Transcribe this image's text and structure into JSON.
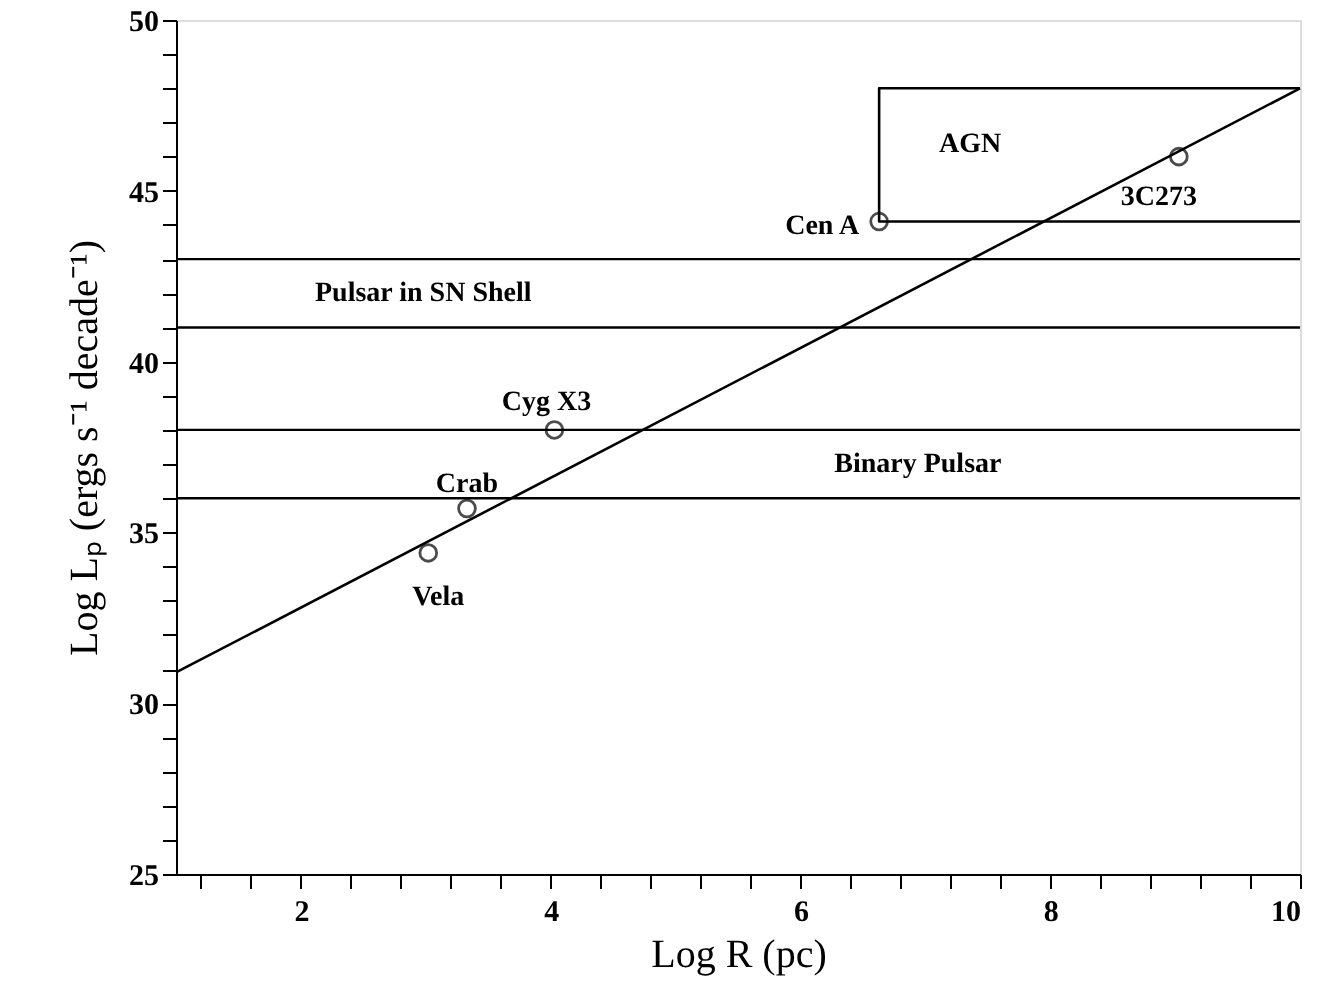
{
  "chart_data": {
    "type": "scatter",
    "xlabel": "Log R (pc)",
    "ylabel": "Log Lₚ (ergs s⁻¹ decade⁻¹)",
    "xlim": [
      1,
      10
    ],
    "ylim": [
      25,
      50
    ],
    "xticks": [
      {
        "value": 1.2,
        "label": null
      },
      {
        "value": 1.6,
        "label": null
      },
      2,
      {
        "value": 2.4,
        "label": null
      },
      {
        "value": 2.8,
        "label": null
      },
      {
        "value": 3.2,
        "label": null
      },
      {
        "value": 3.6,
        "label": null
      },
      4,
      {
        "value": 4.4,
        "label": null
      },
      {
        "value": 4.8,
        "label": null
      },
      {
        "value": 5.2,
        "label": null
      },
      {
        "value": 5.6,
        "label": null
      },
      6,
      {
        "value": 6.4,
        "label": null
      },
      {
        "value": 6.8,
        "label": null
      },
      {
        "value": 7.2,
        "label": null
      },
      {
        "value": 7.6,
        "label": null
      },
      8,
      {
        "value": 8.4,
        "label": null
      },
      {
        "value": 8.8,
        "label": null
      },
      {
        "value": 9.2,
        "label": null
      },
      {
        "value": 9.6,
        "label": null
      },
      10
    ],
    "yticks": [
      25,
      {
        "value": 26,
        "label": null
      },
      {
        "value": 27,
        "label": null
      },
      {
        "value": 28,
        "label": null
      },
      {
        "value": 29,
        "label": null
      },
      30,
      {
        "value": 31,
        "label": null
      },
      {
        "value": 32,
        "label": null
      },
      {
        "value": 33,
        "label": null
      },
      {
        "value": 34,
        "label": null
      },
      35,
      {
        "value": 36,
        "label": null
      },
      {
        "value": 37,
        "label": null
      },
      {
        "value": 38,
        "label": null
      },
      {
        "value": 39,
        "label": null
      },
      40,
      {
        "value": 41,
        "label": null
      },
      {
        "value": 42,
        "label": null
      },
      {
        "value": 43,
        "label": null
      },
      {
        "value": 44,
        "label": null
      },
      45,
      {
        "value": 46,
        "label": null
      },
      {
        "value": 47,
        "label": null
      },
      {
        "value": 48,
        "label": null
      },
      {
        "value": 49,
        "label": null
      },
      50
    ],
    "series": [
      {
        "color": "#000000",
        "marker": "circle",
        "x": [
          3.02,
          3.33,
          4.03,
          6.63,
          9.03
        ],
        "values": [
          34.4,
          35.7,
          38.0,
          44.1,
          46.0
        ]
      },
      {
        "type": "line",
        "color": "#000000",
        "x": [
          1,
          10
        ],
        "values": [
          30.9,
          48.0
        ]
      },
      {
        "type": "line",
        "name": "AGN",
        "color": "#000000",
        "x": [
          10,
          6.63,
          6.63,
          10
        ],
        "values": [
          48.0,
          48.0,
          44.1,
          44.1
        ]
      }
    ],
    "ref_lines": [
      {
        "axis": "y",
        "value": 43,
        "color": "#000000"
      },
      {
        "axis": "y",
        "value": 41,
        "label": "Pulsar in SN Shell",
        "color": "#000000"
      },
      {
        "axis": "y",
        "value": 38,
        "color": "#000000"
      },
      {
        "axis": "y",
        "value": 36,
        "label": "Binary Pulsar",
        "color": "#000000"
      }
    ],
    "annotations": [
      {
        "text": "Vela",
        "x": 3.02,
        "y": 34.4
      },
      {
        "text": "Crab",
        "x": 3.33,
        "y": 35.7
      },
      {
        "text": "Cyg X3",
        "x": 4.03,
        "y": 38.0
      },
      {
        "text": "Cen A",
        "x": 6.63,
        "y": 44.1
      },
      {
        "text": "3C273",
        "x": 9.03,
        "y": 46.0
      }
    ]
  }
}
